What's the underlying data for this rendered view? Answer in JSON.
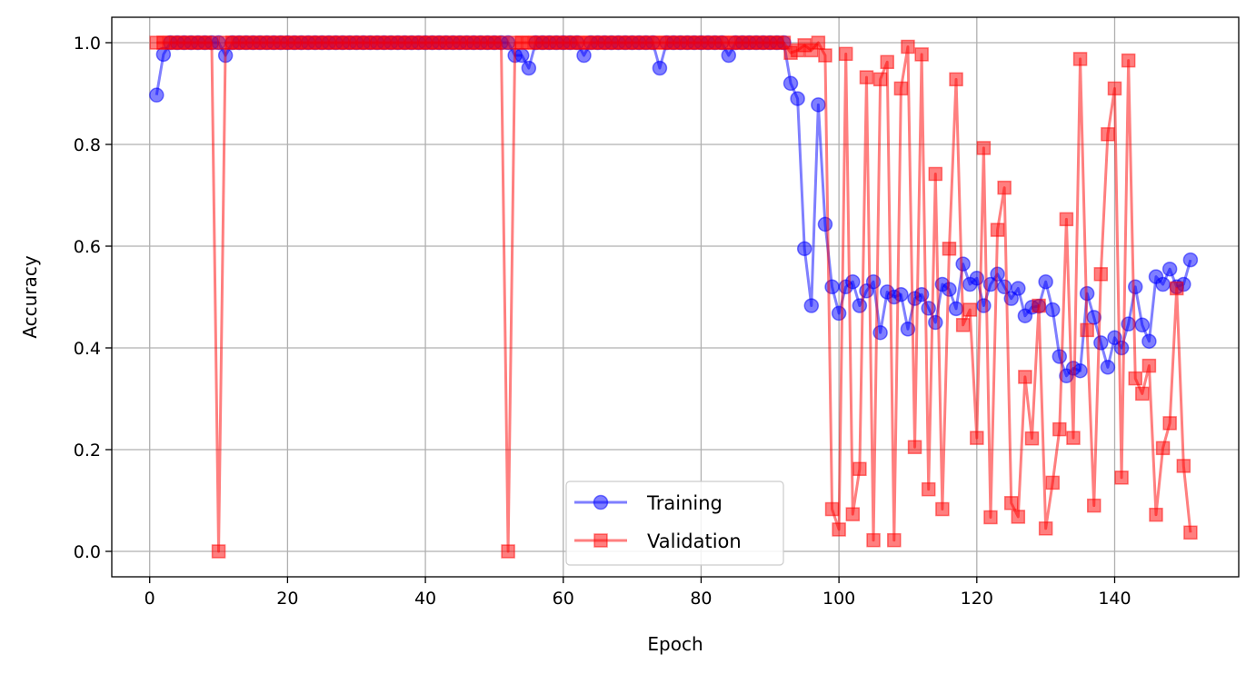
{
  "chart_data": {
    "type": "line",
    "xlabel": "Epoch",
    "ylabel": "Accuracy",
    "xlim": [
      -5.5,
      158
    ],
    "ylim": [
      -0.05,
      1.05
    ],
    "xticks": [
      0,
      20,
      40,
      60,
      80,
      100,
      120,
      140
    ],
    "yticks": [
      0.0,
      0.2,
      0.4,
      0.6,
      0.8,
      1.0
    ],
    "xtick_labels": [
      "0",
      "20",
      "40",
      "60",
      "80",
      "100",
      "120",
      "140"
    ],
    "ytick_labels": [
      "0.0",
      "0.2",
      "0.4",
      "0.6",
      "0.8",
      "1.0"
    ],
    "grid": true,
    "legend_position": "lower-center",
    "legend_entries": [
      "Training",
      "Validation"
    ],
    "series": [
      {
        "name": "Training",
        "color": "#0000ff",
        "marker": "circle",
        "x": [
          1,
          2,
          3,
          4,
          5,
          6,
          7,
          8,
          9,
          10,
          11,
          12,
          13,
          14,
          15,
          16,
          17,
          18,
          19,
          20,
          21,
          22,
          23,
          24,
          25,
          26,
          27,
          28,
          29,
          30,
          31,
          32,
          33,
          34,
          35,
          36,
          37,
          38,
          39,
          40,
          41,
          42,
          43,
          44,
          45,
          46,
          47,
          48,
          49,
          50,
          51,
          52,
          53,
          54,
          55,
          56,
          57,
          58,
          59,
          60,
          61,
          62,
          63,
          64,
          65,
          66,
          67,
          68,
          69,
          70,
          71,
          72,
          73,
          74,
          75,
          76,
          77,
          78,
          79,
          80,
          81,
          82,
          83,
          84,
          85,
          86,
          87,
          88,
          89,
          90,
          91,
          92,
          93,
          94,
          95,
          96,
          97,
          98,
          99,
          100,
          101,
          102,
          103,
          104,
          105,
          106,
          107,
          108,
          109,
          110,
          111,
          112,
          113,
          114,
          115,
          116,
          117,
          118,
          119,
          120,
          121,
          122,
          123,
          124,
          125,
          126,
          127,
          128,
          129,
          130,
          131,
          132,
          133,
          134,
          135,
          136,
          137,
          138,
          139,
          140,
          141,
          142,
          143,
          144,
          145,
          146,
          147,
          148,
          149,
          150,
          151
        ],
        "y": [
          0.897,
          0.977,
          1.0,
          1.0,
          1.0,
          1.0,
          1.0,
          1.0,
          1.0,
          1.0,
          0.975,
          1.0,
          1.0,
          1.0,
          1.0,
          1.0,
          1.0,
          1.0,
          1.0,
          1.0,
          1.0,
          1.0,
          1.0,
          1.0,
          1.0,
          1.0,
          1.0,
          1.0,
          1.0,
          1.0,
          1.0,
          1.0,
          1.0,
          1.0,
          1.0,
          1.0,
          1.0,
          1.0,
          1.0,
          1.0,
          1.0,
          1.0,
          1.0,
          1.0,
          1.0,
          1.0,
          1.0,
          1.0,
          1.0,
          1.0,
          1.0,
          1.0,
          0.975,
          0.975,
          0.95,
          1.0,
          1.0,
          1.0,
          1.0,
          1.0,
          1.0,
          1.0,
          0.975,
          1.0,
          1.0,
          1.0,
          1.0,
          1.0,
          1.0,
          1.0,
          1.0,
          1.0,
          1.0,
          0.95,
          1.0,
          1.0,
          1.0,
          1.0,
          1.0,
          1.0,
          1.0,
          1.0,
          1.0,
          0.975,
          1.0,
          1.0,
          1.0,
          1.0,
          1.0,
          1.0,
          1.0,
          1.0,
          0.92,
          0.89,
          0.595,
          0.483,
          0.878,
          0.643,
          0.52,
          0.468,
          0.52,
          0.53,
          0.483,
          0.512,
          0.53,
          0.43,
          0.51,
          0.5,
          0.505,
          0.437,
          0.497,
          0.505,
          0.478,
          0.45,
          0.525,
          0.515,
          0.477,
          0.565,
          0.525,
          0.537,
          0.483,
          0.525,
          0.545,
          0.52,
          0.497,
          0.517,
          0.463,
          0.48,
          0.482,
          0.53,
          0.475,
          0.383,
          0.345,
          0.36,
          0.355,
          0.507,
          0.46,
          0.41,
          0.362,
          0.42,
          0.4,
          0.447,
          0.52,
          0.445,
          0.413,
          0.54,
          0.525,
          0.555,
          0.52,
          0.525,
          0.573
        ]
      },
      {
        "name": "Validation",
        "color": "#ff0000",
        "marker": "square",
        "x": [
          1,
          2,
          3,
          4,
          5,
          6,
          7,
          8,
          9,
          10,
          11,
          12,
          13,
          14,
          15,
          16,
          17,
          18,
          19,
          20,
          21,
          22,
          23,
          24,
          25,
          26,
          27,
          28,
          29,
          30,
          31,
          32,
          33,
          34,
          35,
          36,
          37,
          38,
          39,
          40,
          41,
          42,
          43,
          44,
          45,
          46,
          47,
          48,
          49,
          50,
          51,
          52,
          53,
          54,
          55,
          56,
          57,
          58,
          59,
          60,
          61,
          62,
          63,
          64,
          65,
          66,
          67,
          68,
          69,
          70,
          71,
          72,
          73,
          74,
          75,
          76,
          77,
          78,
          79,
          80,
          81,
          82,
          83,
          84,
          85,
          86,
          87,
          88,
          89,
          90,
          91,
          92,
          93,
          94,
          95,
          96,
          97,
          98,
          99,
          100,
          101,
          102,
          103,
          104,
          105,
          106,
          107,
          108,
          109,
          110,
          111,
          112,
          113,
          114,
          115,
          116,
          117,
          118,
          119,
          120,
          121,
          122,
          123,
          124,
          125,
          126,
          127,
          128,
          129,
          130,
          131,
          132,
          133,
          134,
          135,
          136,
          137,
          138,
          139,
          140,
          141,
          142,
          143,
          144,
          145,
          146,
          147,
          148,
          149,
          150,
          151
        ],
        "y": [
          1.0,
          1.0,
          1.0,
          1.0,
          1.0,
          1.0,
          1.0,
          1.0,
          1.0,
          0.0,
          1.0,
          1.0,
          1.0,
          1.0,
          1.0,
          1.0,
          1.0,
          1.0,
          1.0,
          1.0,
          1.0,
          1.0,
          1.0,
          1.0,
          1.0,
          1.0,
          1.0,
          1.0,
          1.0,
          1.0,
          1.0,
          1.0,
          1.0,
          1.0,
          1.0,
          1.0,
          1.0,
          1.0,
          1.0,
          1.0,
          1.0,
          1.0,
          1.0,
          1.0,
          1.0,
          1.0,
          1.0,
          1.0,
          1.0,
          1.0,
          1.0,
          0.0,
          1.0,
          1.0,
          1.0,
          1.0,
          1.0,
          1.0,
          1.0,
          1.0,
          1.0,
          1.0,
          1.0,
          1.0,
          1.0,
          1.0,
          1.0,
          1.0,
          1.0,
          1.0,
          1.0,
          1.0,
          1.0,
          1.0,
          1.0,
          1.0,
          1.0,
          1.0,
          1.0,
          1.0,
          1.0,
          1.0,
          1.0,
          1.0,
          1.0,
          1.0,
          1.0,
          1.0,
          1.0,
          1.0,
          1.0,
          1.0,
          0.98,
          0.985,
          0.995,
          0.985,
          1.0,
          0.975,
          0.083,
          0.043,
          0.978,
          0.073,
          0.162,
          0.932,
          0.022,
          0.928,
          0.962,
          0.022,
          0.91,
          0.992,
          0.205,
          0.977,
          0.122,
          0.742,
          0.083,
          0.595,
          0.928,
          0.445,
          0.475,
          0.223,
          0.793,
          0.067,
          0.632,
          0.715,
          0.095,
          0.068,
          0.343,
          0.222,
          0.483,
          0.045,
          0.135,
          0.24,
          0.653,
          0.223,
          0.968,
          0.435,
          0.09,
          0.545,
          0.82,
          0.91,
          0.145,
          0.965,
          0.34,
          0.31,
          0.365,
          0.072,
          0.203,
          0.252,
          0.517,
          0.168,
          0.037
        ]
      }
    ]
  }
}
